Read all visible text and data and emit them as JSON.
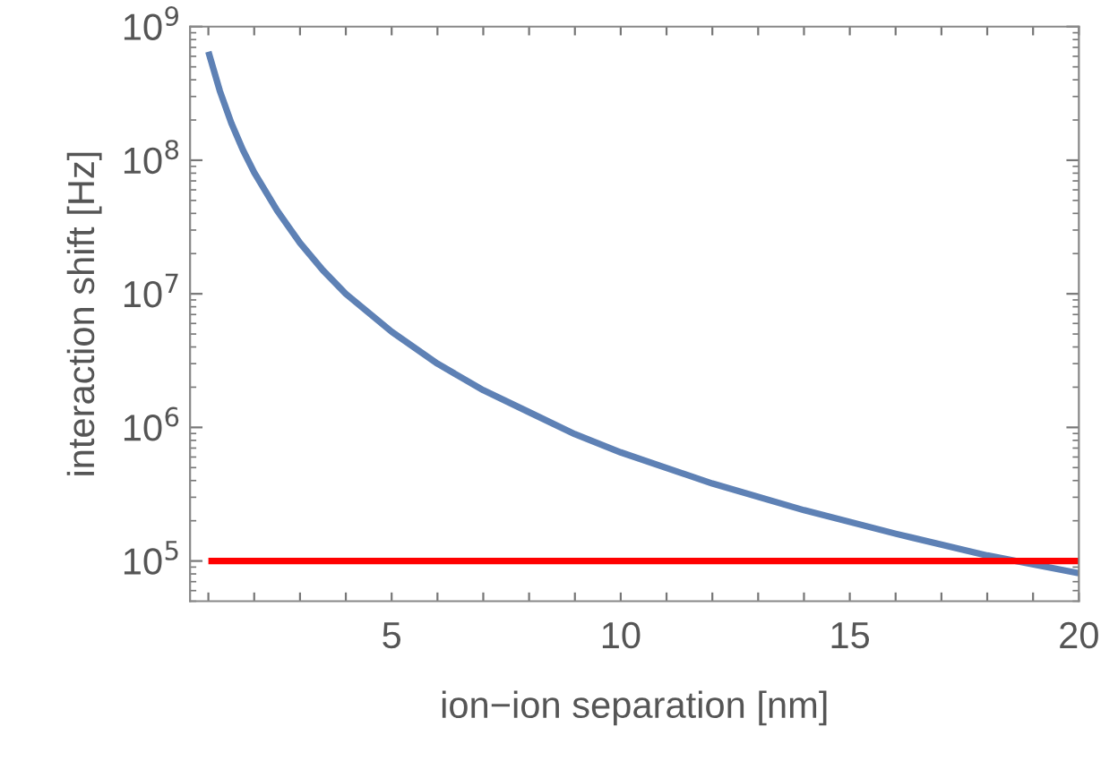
{
  "chart_data": {
    "type": "line",
    "xlabel": "ion−ion separation [nm]",
    "ylabel": "interaction shift [Hz]",
    "log": "y",
    "xlim": [
      0.6,
      20
    ],
    "ylim": [
      50000,
      1000000000
    ],
    "xticks": [
      {
        "value": 1,
        "label": null
      },
      {
        "value": 2,
        "label": null
      },
      {
        "value": 3,
        "label": null
      },
      {
        "value": 4,
        "label": null
      },
      5,
      {
        "value": 6,
        "label": null
      },
      {
        "value": 7,
        "label": null
      },
      {
        "value": 8,
        "label": null
      },
      {
        "value": 9,
        "label": null
      },
      10,
      {
        "value": 11,
        "label": null
      },
      {
        "value": 12,
        "label": null
      },
      {
        "value": 13,
        "label": null
      },
      {
        "value": 14,
        "label": null
      },
      15,
      {
        "value": 16,
        "label": null
      },
      {
        "value": 17,
        "label": null
      },
      {
        "value": 18,
        "label": null
      },
      {
        "value": 19,
        "label": null
      },
      20
    ],
    "yticks": [
      {
        "value": 100000,
        "label": "10$^{5}$"
      },
      {
        "value": 1000000,
        "label": "10$^{6}$"
      },
      {
        "value": 10000000,
        "label": "10$^{7}$"
      },
      {
        "value": 100000000,
        "label": "10$^{8}$"
      },
      {
        "value": 1000000000,
        "label": "10$^{9}$"
      }
    ],
    "grid": false,
    "marker": "none",
    "line_style": "solid",
    "series": [
      {
        "color": "#5e81b5",
        "x": [
          1,
          1.25,
          1.5,
          1.75,
          2,
          2.5,
          3,
          3.5,
          4,
          5,
          6,
          7,
          8,
          9,
          10,
          12,
          14,
          16,
          18,
          20
        ],
        "values": [
          650000000,
          330000000,
          190000000,
          120000000,
          81000000,
          42000000,
          24000000,
          15000000,
          10000000,
          5200000,
          3000000,
          1900000,
          1300000,
          890000,
          650000,
          380000,
          240000,
          160000,
          110000,
          81000
        ]
      },
      {
        "color": "#ff0000",
        "x": [
          1,
          20
        ],
        "values": [
          100000,
          100000
        ]
      }
    ]
  }
}
